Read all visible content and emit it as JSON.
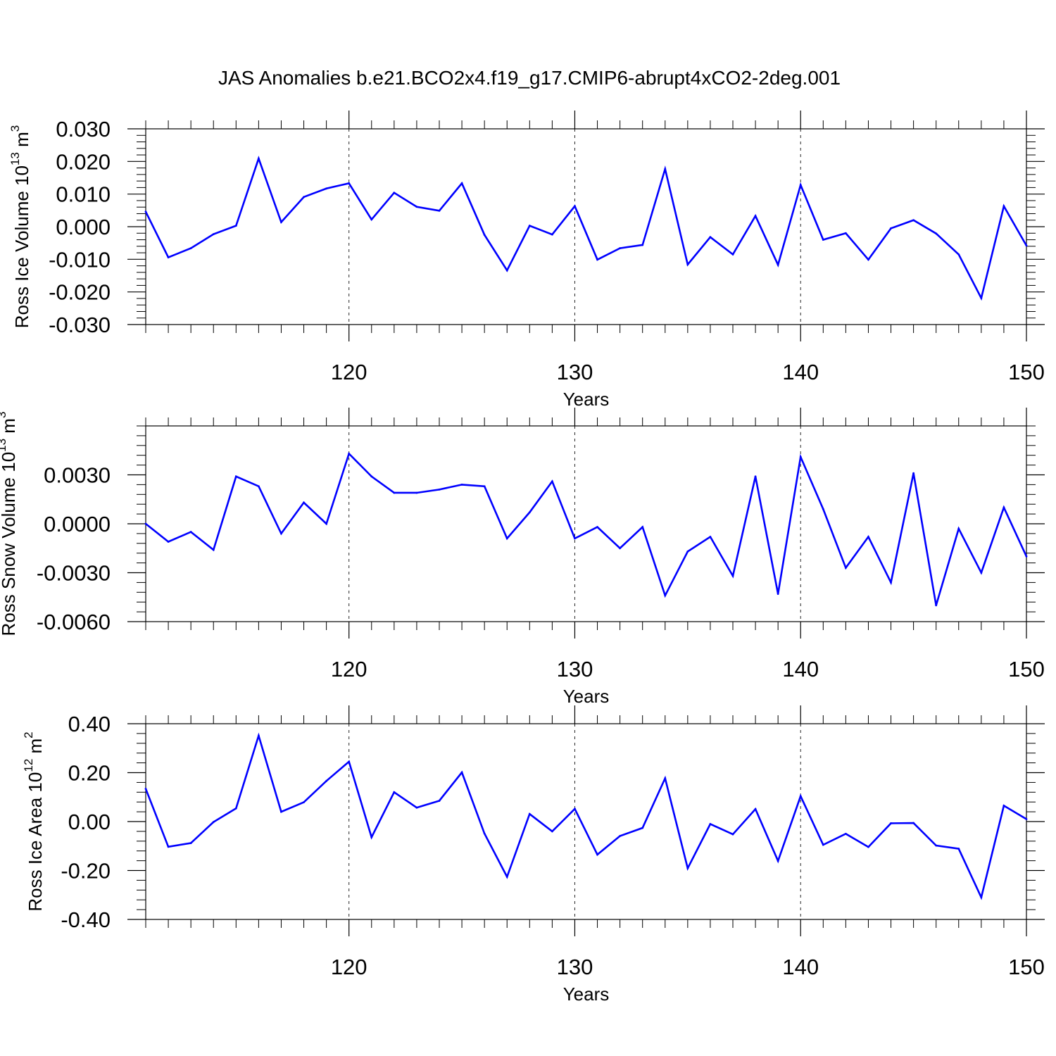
{
  "title": "JAS Anomalies b.e21.BCO2x4.f19_g17.CMIP6-abrupt4xCO2-2deg.001",
  "line_color": "#0000ff",
  "chart_data": [
    {
      "type": "line",
      "ylabel": {
        "text": "Ross Ice Volume 10",
        "exp": "13",
        "unit": " m",
        "unit_exp": "3"
      },
      "xlabel": "Years",
      "xlim": [
        111,
        150
      ],
      "ylim": [
        -0.03,
        0.03
      ],
      "xticks": [
        120,
        130,
        140,
        150
      ],
      "yticks": [
        {
          "value": 0.03,
          "label": "0.030"
        },
        {
          "value": 0.02,
          "label": "0.020"
        },
        {
          "value": 0.01,
          "label": "0.010"
        },
        {
          "value": 0.0,
          "label": "0.000"
        },
        {
          "value": -0.01,
          "label": "-0.010"
        },
        {
          "value": -0.02,
          "label": "-0.020"
        },
        {
          "value": -0.03,
          "label": "-0.030"
        }
      ],
      "x": [
        111,
        112,
        113,
        114,
        115,
        116,
        117,
        118,
        119,
        120,
        121,
        122,
        123,
        124,
        125,
        126,
        127,
        128,
        129,
        130,
        131,
        132,
        133,
        134,
        135,
        136,
        137,
        138,
        139,
        140,
        141,
        142,
        143,
        144,
        145,
        146,
        147,
        148,
        149,
        150
      ],
      "values": [
        0.0046,
        -0.0094,
        -0.0066,
        -0.0023,
        0.0003,
        0.0209,
        0.0014,
        0.0091,
        0.0117,
        0.0133,
        0.0022,
        0.0104,
        0.0061,
        0.0049,
        0.0133,
        -0.0025,
        -0.0134,
        0.0003,
        -0.0024,
        0.0063,
        -0.0101,
        -0.0066,
        -0.0056,
        0.0177,
        -0.0116,
        -0.0032,
        -0.0085,
        0.0033,
        -0.0117,
        0.0128,
        -0.004,
        -0.002,
        -0.0101,
        -0.0005,
        0.002,
        -0.0021,
        -0.0085,
        -0.0219,
        0.0063,
        -0.0058
      ]
    },
    {
      "type": "line",
      "ylabel": {
        "text": "Ross Snow Volume 10",
        "exp": "13",
        "unit": " m",
        "unit_exp": "3"
      },
      "xlabel": "Years",
      "xlim": [
        111,
        150
      ],
      "ylim": [
        -0.006,
        0.006
      ],
      "xticks": [
        120,
        130,
        140,
        150
      ],
      "yticks": [
        {
          "value": 0.003,
          "label": "0.0030"
        },
        {
          "value": 0.0,
          "label": "0.0000"
        },
        {
          "value": -0.003,
          "label": "-0.0030"
        },
        {
          "value": -0.006,
          "label": "-0.0060"
        }
      ],
      "x": [
        111,
        112,
        113,
        114,
        115,
        116,
        117,
        118,
        119,
        120,
        121,
        122,
        123,
        124,
        125,
        126,
        127,
        128,
        129,
        130,
        131,
        132,
        133,
        134,
        135,
        136,
        137,
        138,
        139,
        140,
        141,
        142,
        143,
        144,
        145,
        146,
        147,
        148,
        149,
        150
      ],
      "values": [
        0.0,
        -0.0011,
        -0.0005,
        -0.0016,
        0.0029,
        0.0023,
        -0.0006,
        0.0013,
        0.0,
        0.0043,
        0.0029,
        0.0019,
        0.0019,
        0.0021,
        0.0024,
        0.0023,
        -0.0009,
        0.0007,
        0.0026,
        -0.0009,
        -0.0002,
        -0.0015,
        -0.0002,
        -0.0044,
        -0.0017,
        -0.0008,
        -0.0032,
        0.0029,
        -0.0043,
        0.0041,
        0.0009,
        -0.0027,
        -0.0008,
        -0.0036,
        0.0031,
        -0.005,
        -0.0003,
        -0.003,
        0.001,
        -0.002
      ]
    },
    {
      "type": "line",
      "ylabel": {
        "text": "Ross Ice Area 10",
        "exp": "12",
        "unit": " m",
        "unit_exp": "2"
      },
      "xlabel": "Years",
      "xlim": [
        111,
        150
      ],
      "ylim": [
        -0.4,
        0.4
      ],
      "xticks": [
        120,
        130,
        140,
        150
      ],
      "yticks": [
        {
          "value": 0.4,
          "label": "0.40"
        },
        {
          "value": 0.2,
          "label": "0.20"
        },
        {
          "value": 0.0,
          "label": "0.00"
        },
        {
          "value": -0.2,
          "label": "-0.20"
        },
        {
          "value": -0.4,
          "label": "-0.40"
        }
      ],
      "x": [
        111,
        112,
        113,
        114,
        115,
        116,
        117,
        118,
        119,
        120,
        121,
        122,
        123,
        124,
        125,
        126,
        127,
        128,
        129,
        130,
        131,
        132,
        133,
        134,
        135,
        136,
        137,
        138,
        139,
        140,
        141,
        142,
        143,
        144,
        145,
        146,
        147,
        148,
        149,
        150
      ],
      "values": [
        0.134,
        -0.103,
        -0.088,
        -0.002,
        0.054,
        0.351,
        0.04,
        0.079,
        0.166,
        0.245,
        -0.064,
        0.12,
        0.057,
        0.085,
        0.201,
        -0.049,
        -0.226,
        0.031,
        -0.04,
        0.052,
        -0.135,
        -0.059,
        -0.026,
        0.177,
        -0.191,
        -0.01,
        -0.052,
        0.051,
        -0.161,
        0.104,
        -0.095,
        -0.05,
        -0.104,
        -0.007,
        -0.006,
        -0.098,
        -0.111,
        -0.31,
        0.065,
        0.01
      ]
    }
  ]
}
